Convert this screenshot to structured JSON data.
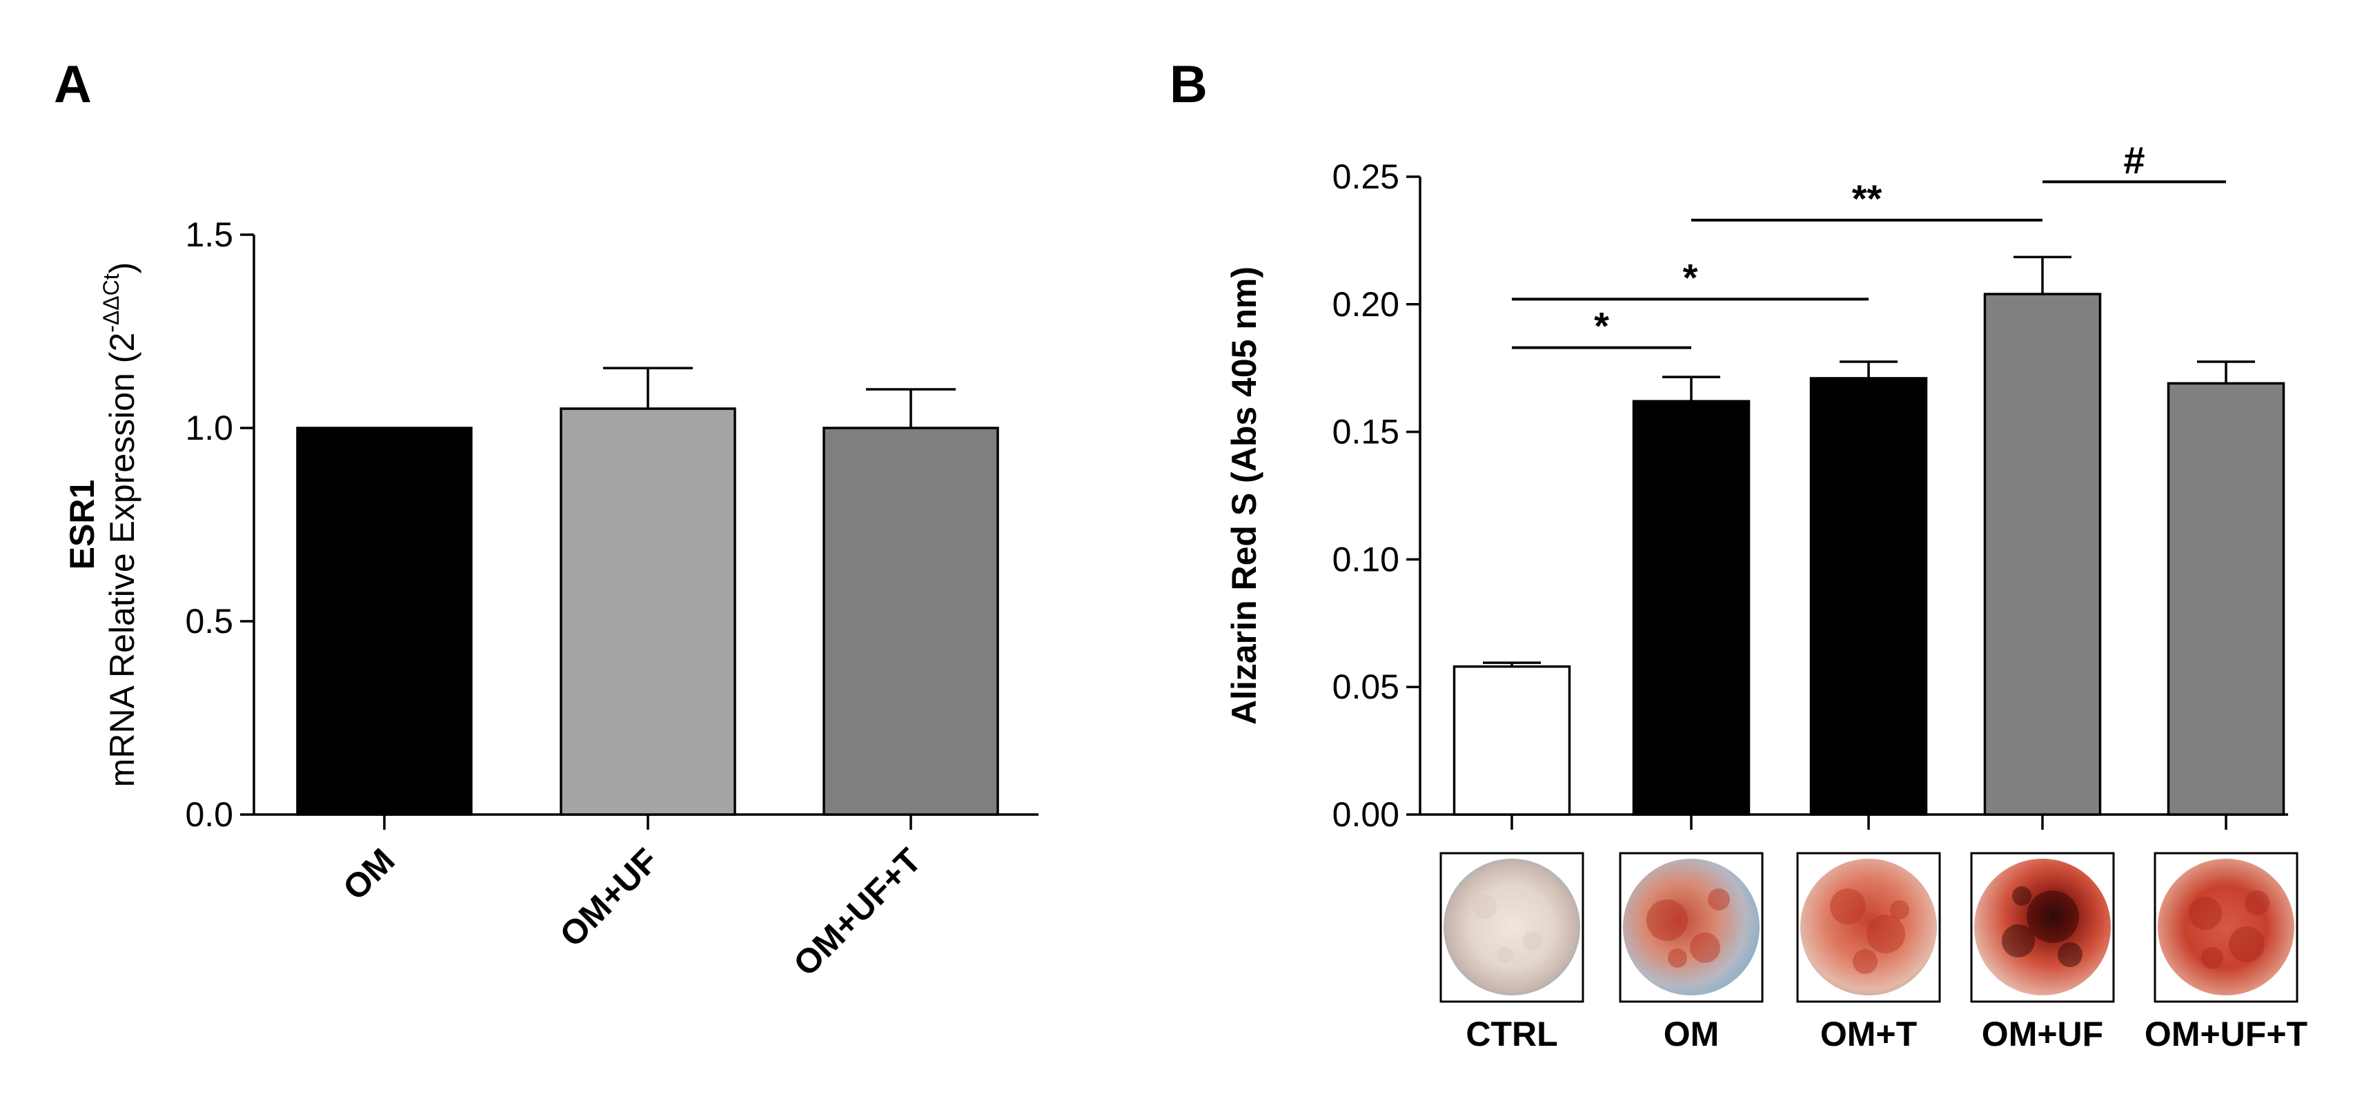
{
  "chart_data": [
    {
      "panel": "A",
      "type": "bar",
      "ylabel_line1": "ESR1",
      "ylabel_line2": "mRNA Relative Expression (2",
      "ylabel_sup": "-ΔΔCt",
      "ylabel_close": ")",
      "ylim": [
        0,
        1.5
      ],
      "yticks": [
        0.0,
        0.5,
        1.0,
        1.5
      ],
      "ytick_labels": [
        "0.0",
        "0.5",
        "1.0",
        "1.5"
      ],
      "categories": [
        "OM",
        "OM+UF",
        "OM+UF+T"
      ],
      "values": [
        1.0,
        1.05,
        1.0
      ],
      "errors": [
        0,
        0.105,
        0.1
      ],
      "colors": [
        "#000000",
        "#a5a5a8",
        "#7f7f7f"
      ]
    },
    {
      "panel": "B",
      "type": "bar",
      "ylabel": "Alizarin Red S (Abs 405 nm)",
      "ylim": [
        0,
        0.25
      ],
      "yticks": [
        0.0,
        0.05,
        0.1,
        0.15,
        0.2,
        0.25
      ],
      "ytick_labels": [
        "0.00",
        "0.05",
        "0.10",
        "0.15",
        "0.20",
        "0.25"
      ],
      "categories": [
        "CTRL",
        "OM",
        "OM+T",
        "OM+UF",
        "OM+UF+T"
      ],
      "values": [
        0.058,
        0.162,
        0.171,
        0.204,
        0.169
      ],
      "errors": [
        0.0015,
        0.0095,
        0.0065,
        0.0145,
        0.0085
      ],
      "colors": [
        "#ffffff",
        "#000000",
        "#000000",
        "#808080",
        "#808080"
      ],
      "significance": [
        {
          "from": 0,
          "to": 1,
          "label": "*",
          "level": 0.183
        },
        {
          "from": 0,
          "to": 2,
          "label": "*",
          "level": 0.202
        },
        {
          "from": 1,
          "to": 3,
          "label": "**",
          "level": 0.233
        },
        {
          "from": 3,
          "to": 4,
          "label": "#",
          "level": 0.248
        }
      ],
      "stain_photos": [
        "CTRL",
        "OM",
        "OM+T",
        "OM+UF",
        "OM+UF+T"
      ]
    }
  ]
}
